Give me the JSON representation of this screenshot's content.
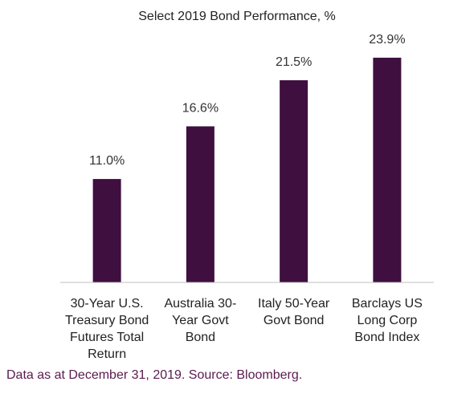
{
  "chart_data": {
    "type": "bar",
    "title": "Select 2019 Bond Performance, %",
    "categories": [
      [
        "30-Year U.S.",
        "Treasury Bond",
        "Futures Total",
        "Return"
      ],
      [
        "Australia 30-",
        "Year Govt",
        "Bond"
      ],
      [
        "Italy 50-Year",
        "Govt Bond"
      ],
      [
        "Barclays US",
        "Long Corp",
        "Bond Index"
      ]
    ],
    "values": [
      11.0,
      16.6,
      21.5,
      23.9
    ],
    "value_labels": [
      "11.0%",
      "16.6%",
      "21.5%",
      "23.9%"
    ],
    "ylim": [
      0,
      25
    ],
    "grid": false,
    "bar_color": "#3f0f40",
    "axis_color": "#bfbfbf"
  },
  "footer": {
    "source": "Data as at December 31, 2019. Source: Bloomberg."
  }
}
